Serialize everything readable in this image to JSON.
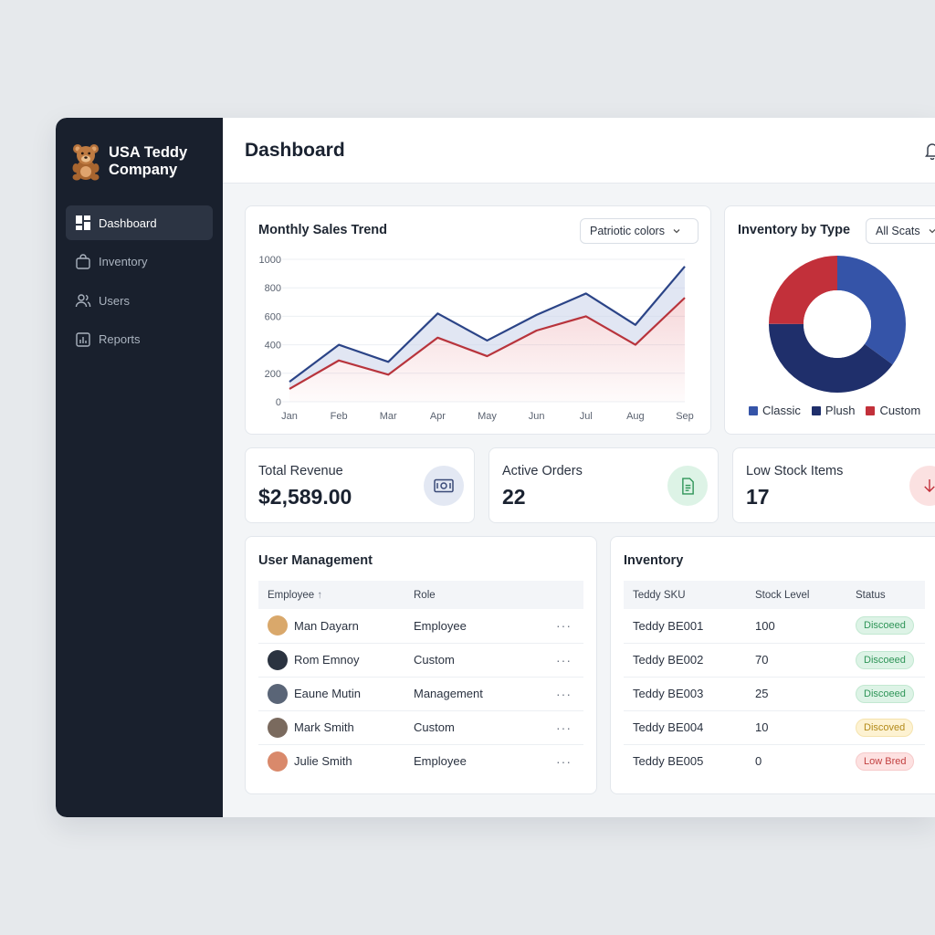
{
  "brand": {
    "name_line1": "USA Teddy",
    "name_line2": "Company"
  },
  "nav": [
    {
      "label": "Dashboard",
      "icon": "dashboard-icon",
      "active": true
    },
    {
      "label": "Inventory",
      "icon": "bag-icon",
      "active": false
    },
    {
      "label": "Users",
      "icon": "users-icon",
      "active": false
    },
    {
      "label": "Reports",
      "icon": "reports-icon",
      "active": false
    }
  ],
  "header": {
    "title": "Dashboard"
  },
  "sales_card": {
    "title": "Monthly Sales Trend",
    "select_value": "Patriotic colors"
  },
  "inventory_type_card": {
    "title": "Inventory by Type",
    "select_value": "All Scats"
  },
  "chart_data": [
    {
      "type": "line",
      "categories": [
        "Jan",
        "Feb",
        "Mar",
        "Apr",
        "May",
        "Jun",
        "Jul",
        "Aug",
        "Sep"
      ],
      "ylim": [
        0,
        1000
      ],
      "yticks": [
        0,
        200,
        400,
        600,
        800,
        1000
      ],
      "series": [
        {
          "color": "#2b4487",
          "values": [
            140,
            400,
            280,
            620,
            430,
            610,
            760,
            540,
            950
          ]
        },
        {
          "color": "#b8343c",
          "values": [
            90,
            290,
            190,
            450,
            320,
            500,
            600,
            400,
            730
          ]
        }
      ]
    },
    {
      "type": "pie",
      "donut": true,
      "legend": [
        "Classic",
        "Plush",
        "Custom"
      ],
      "values": [
        35,
        40,
        25
      ],
      "colors": [
        "#3554a8",
        "#1f2f6b",
        "#c2303a"
      ]
    }
  ],
  "stats": [
    {
      "label": "Total Revenue",
      "value": "$2,589.00",
      "icon": "money-icon"
    },
    {
      "label": "Active Orders",
      "value": "22",
      "icon": "document-icon"
    },
    {
      "label": "Low Stock Items",
      "value": "17",
      "icon": "arrow-down-icon"
    }
  ],
  "user_management": {
    "title": "User Management",
    "col_employee": "Employee",
    "col_role": "Role",
    "rows": [
      {
        "name": "Man Dayarn",
        "role": "Employee",
        "avatar_color": "#d9a86b"
      },
      {
        "name": "Rom Emnoy",
        "role": "Custom",
        "avatar_color": "#2b3340"
      },
      {
        "name": "Eaune Mutin",
        "role": "Management",
        "avatar_color": "#5a6577"
      },
      {
        "name": "Mark Smith",
        "role": "Custom",
        "avatar_color": "#7a6a5e"
      },
      {
        "name": "Julie Smith",
        "role": "Employee",
        "avatar_color": "#d9896b"
      }
    ],
    "more": "···"
  },
  "inventory_table": {
    "title": "Inventory",
    "col_sku": "Teddy SKU",
    "col_stock": "Stock Level",
    "col_status": "Status",
    "rows": [
      {
        "sku": "Teddy BE001",
        "stock": "100",
        "status": "Discoeed",
        "tone": "green"
      },
      {
        "sku": "Teddy BE002",
        "stock": "70",
        "status": "Discoeed",
        "tone": "green"
      },
      {
        "sku": "Teddy BE003",
        "stock": "25",
        "status": "Discoeed",
        "tone": "green"
      },
      {
        "sku": "Teddy BE004",
        "stock": "10",
        "status": "Discoved",
        "tone": "yellow"
      },
      {
        "sku": "Teddy BE005",
        "stock": "0",
        "status": "Low Bred",
        "tone": "red"
      }
    ]
  }
}
